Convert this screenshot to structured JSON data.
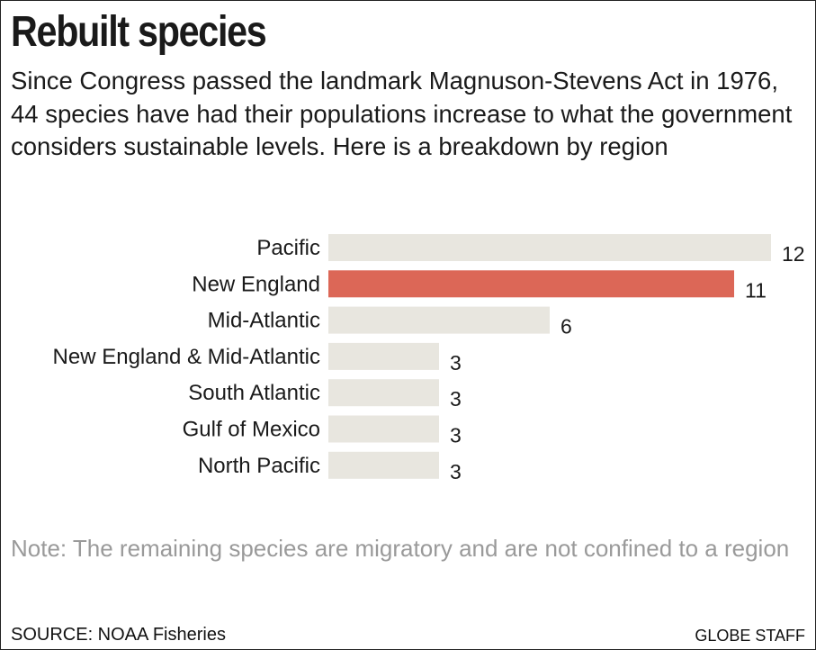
{
  "header": {
    "title": "Rebuilt species",
    "subtitle": "Since Congress passed the landmark Magnuson-Stevens Act in 1976, 44 species have had their populations increase to what the government considers sustainable levels. Here is a breakdown by region"
  },
  "chart_data": {
    "type": "bar",
    "orientation": "horizontal",
    "categories": [
      "Pacific",
      "New England",
      "Mid-Atlantic",
      "New England & Mid-Atlantic",
      "South Atlantic",
      "Gulf of Mexico",
      "North Pacific"
    ],
    "values": [
      12,
      11,
      6,
      3,
      3,
      3,
      3
    ],
    "title": "",
    "xlabel": "",
    "ylabel": "",
    "xlim": [
      0,
      12
    ],
    "grid": false,
    "legend": "none",
    "highlight_category": "New England",
    "colors": {
      "bar": "#e8e6df",
      "highlight": "#dc6757",
      "text": "#1a1a1a"
    }
  },
  "footer": {
    "note": "Note: The remaining species are migratory and are not confined to a region",
    "source": "SOURCE: NOAA Fisheries",
    "credit": "GLOBE STAFF"
  }
}
